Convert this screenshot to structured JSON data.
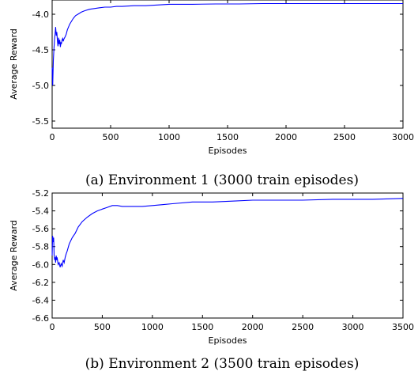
{
  "chart_data": [
    {
      "type": "line",
      "caption": "(a) Environment 1 (3000 train episodes)",
      "xlabel": "Episodes",
      "ylabel": "Average Reward",
      "xlim": [
        0,
        3000
      ],
      "ylim": [
        -5.6,
        -3.8
      ],
      "xticks": [
        "0",
        "500",
        "1000",
        "1500",
        "2000",
        "2500",
        "3000"
      ],
      "yticks": [
        "-4.0",
        "-4.5",
        "-5.0",
        "-5.5"
      ],
      "ytick_values": [
        -4.0,
        -4.5,
        -5.0,
        -5.5
      ],
      "xtick_values": [
        0,
        500,
        1000,
        1500,
        2000,
        2500,
        3000
      ],
      "grid": false,
      "color": "#0000ff",
      "x": [
        0,
        5,
        10,
        15,
        20,
        25,
        30,
        35,
        40,
        45,
        50,
        55,
        60,
        65,
        70,
        75,
        80,
        85,
        90,
        95,
        100,
        110,
        120,
        130,
        140,
        150,
        165,
        180,
        200,
        220,
        250,
        280,
        320,
        360,
        400,
        450,
        500,
        550,
        600,
        700,
        800,
        900,
        1000,
        1200,
        1400,
        1600,
        1800,
        2000,
        2200,
        2400,
        2600,
        2800,
        3000
      ],
      "y": [
        -4.75,
        -5.0,
        -4.65,
        -4.5,
        -4.35,
        -4.28,
        -4.18,
        -4.3,
        -4.25,
        -4.38,
        -4.45,
        -4.33,
        -4.42,
        -4.36,
        -4.46,
        -4.4,
        -4.41,
        -4.36,
        -4.34,
        -4.38,
        -4.35,
        -4.32,
        -4.28,
        -4.22,
        -4.18,
        -4.14,
        -4.1,
        -4.06,
        -4.02,
        -4.0,
        -3.97,
        -3.95,
        -3.93,
        -3.92,
        -3.91,
        -3.9,
        -3.9,
        -3.89,
        -3.89,
        -3.88,
        -3.88,
        -3.87,
        -3.86,
        -3.86,
        -3.855,
        -3.855,
        -3.85,
        -3.85,
        -3.85,
        -3.85,
        -3.85,
        -3.85,
        -3.85
      ]
    },
    {
      "type": "line",
      "caption": "(b) Environment 2 (3500 train episodes)",
      "xlabel": "Episodes",
      "ylabel": "Average Reward",
      "xlim": [
        0,
        3500
      ],
      "ylim": [
        -6.6,
        -5.2
      ],
      "xticks": [
        "0",
        "500",
        "1000",
        "1500",
        "2000",
        "2500",
        "3000",
        "3500"
      ],
      "xtick_values": [
        0,
        500,
        1000,
        1500,
        2000,
        2500,
        3000,
        3500
      ],
      "yticks": [
        "-5.2",
        "-5.4",
        "-5.6",
        "-5.8",
        "-6.0",
        "-6.2",
        "-6.4",
        "-6.6"
      ],
      "ytick_values": [
        -5.2,
        -5.4,
        -5.6,
        -5.8,
        -6.0,
        -6.2,
        -6.4,
        -6.6
      ],
      "grid": false,
      "color": "#0000ff",
      "x": [
        0,
        5,
        10,
        15,
        20,
        25,
        30,
        35,
        40,
        45,
        50,
        60,
        70,
        80,
        90,
        100,
        110,
        120,
        130,
        140,
        150,
        170,
        200,
        230,
        260,
        300,
        350,
        400,
        450,
        500,
        550,
        600,
        650,
        700,
        800,
        900,
        1000,
        1100,
        1200,
        1400,
        1600,
        1800,
        2000,
        2200,
        2500,
        2800,
        3000,
        3200,
        3500
      ],
      "y": [
        -5.9,
        -5.68,
        -5.75,
        -5.7,
        -5.9,
        -5.95,
        -5.92,
        -5.98,
        -5.9,
        -5.95,
        -5.92,
        -6.0,
        -5.98,
        -6.03,
        -5.99,
        -6.02,
        -5.95,
        -5.98,
        -5.92,
        -5.88,
        -5.85,
        -5.77,
        -5.7,
        -5.65,
        -5.58,
        -5.52,
        -5.47,
        -5.43,
        -5.4,
        -5.38,
        -5.36,
        -5.34,
        -5.34,
        -5.35,
        -5.35,
        -5.35,
        -5.34,
        -5.33,
        -5.32,
        -5.3,
        -5.3,
        -5.29,
        -5.28,
        -5.28,
        -5.28,
        -5.27,
        -5.27,
        -5.27,
        -5.26
      ]
    }
  ]
}
